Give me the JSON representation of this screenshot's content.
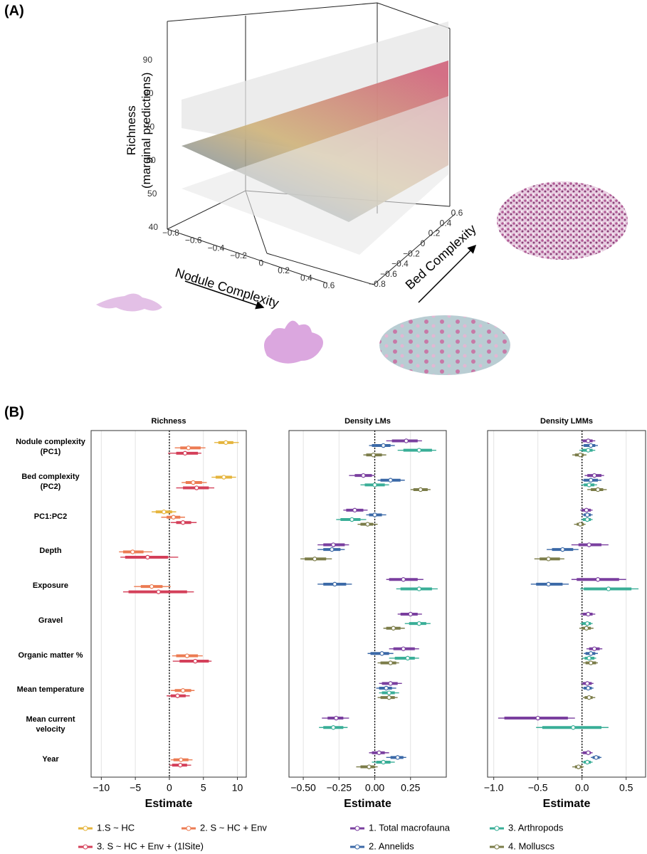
{
  "panel_a": "(A)",
  "panel_b": "(B)",
  "chart_data": [
    {
      "type": "surface",
      "zlabel": "Richness\n(marginal predictions)",
      "xlabel": "Nodule Complexity",
      "ylabel": "Bed Complexity",
      "zlim": [
        40,
        90
      ],
      "zticks": [
        40,
        50,
        60,
        70,
        80,
        90
      ],
      "xlim": [
        -0.8,
        0.6
      ],
      "xticks": [
        {
          "value": -0.8,
          "label": "−0.8"
        },
        {
          "value": -0.6,
          "label": "−0.6"
        },
        {
          "value": -0.4,
          "label": "−0.4"
        },
        {
          "value": -0.2,
          "label": "−0.2"
        },
        0,
        0.2,
        0.4,
        0.6
      ],
      "ylim": [
        -0.8,
        0.6
      ],
      "yticks": [
        {
          "value": -0.8,
          "label": "−0.8"
        },
        {
          "value": -0.6,
          "label": "−0.6"
        },
        {
          "value": -0.4,
          "label": "−0.4"
        },
        {
          "value": -0.2,
          "label": "−0.2"
        },
        0,
        0.2,
        0.4,
        0.6
      ]
    },
    {
      "type": "forest",
      "title": "Richness",
      "xlabel": "Estimate",
      "categories": [
        "Nodule complexity\n(PC1)",
        "Bed complexity\n(PC2)",
        "PC1:PC2",
        "Depth",
        "Exposure",
        "Gravel",
        "Organic matter %",
        "Mean temperature",
        "Mean current\nvelocity",
        "Year"
      ],
      "xlim": [
        -11.5,
        11.3
      ],
      "xticks": [
        {
          "value": -10,
          "label": "−10"
        },
        {
          "value": -5,
          "label": "−5"
        },
        0,
        5,
        10
      ],
      "grid": true,
      "series": [
        {
          "name": "1.S ~ HC",
          "color": "#e5b43c",
          "values": [
            8.3,
            8.0,
            -0.8,
            null,
            null,
            null,
            null,
            null,
            null,
            null
          ],
          "inner_low": [
            7.2,
            6.8,
            -2.0,
            null,
            null,
            null,
            null,
            null,
            null,
            null
          ],
          "inner_high": [
            9.4,
            9.2,
            0.4,
            null,
            null,
            null,
            null,
            null,
            null,
            null
          ],
          "outer_low": [
            6.6,
            6.2,
            -2.6,
            null,
            null,
            null,
            null,
            null,
            null,
            null
          ],
          "outer_high": [
            10.2,
            9.8,
            1.0,
            null,
            null,
            null,
            null,
            null,
            null,
            null
          ]
        },
        {
          "name": "2. S ~ HC + Env",
          "color": "#ec7b52",
          "values": [
            2.8,
            3.5,
            0.6,
            -5.4,
            -2.6,
            null,
            2.6,
            2.0,
            null,
            1.7
          ],
          "inner_low": [
            1.6,
            2.4,
            -0.4,
            -6.8,
            -4.2,
            null,
            1.0,
            0.8,
            null,
            0.6
          ],
          "inner_high": [
            4.6,
            4.8,
            1.6,
            -3.8,
            -1.0,
            null,
            4.2,
            3.2,
            null,
            2.8
          ],
          "outer_low": [
            0.8,
            1.8,
            -1.2,
            -7.4,
            -5.2,
            null,
            0.4,
            0.2,
            null,
            0.2
          ],
          "outer_high": [
            5.3,
            5.5,
            2.3,
            -2.5,
            0.2,
            null,
            4.9,
            3.7,
            null,
            3.4
          ]
        },
        {
          "name": "3. S ~ HC + Env + (1lSite)",
          "color": "#d4405a",
          "values": [
            2.3,
            4.0,
            2.0,
            -3.2,
            -1.6,
            null,
            3.8,
            1.2,
            null,
            1.6
          ],
          "inner_low": [
            1.0,
            2.0,
            1.0,
            -6.5,
            -6.0,
            null,
            1.5,
            0.2,
            null,
            0.4
          ],
          "inner_high": [
            4.2,
            5.8,
            3.2,
            -0.2,
            2.6,
            null,
            5.8,
            2.4,
            null,
            2.6
          ],
          "outer_low": [
            -0.2,
            1.0,
            0.2,
            -7.2,
            -6.8,
            null,
            0.5,
            -0.4,
            null,
            0.0
          ],
          "outer_high": [
            4.7,
            6.6,
            4.0,
            1.3,
            3.6,
            null,
            6.2,
            3.0,
            null,
            3.2
          ]
        }
      ]
    },
    {
      "type": "forest",
      "title": "Density LMs",
      "xlabel": "Estimate",
      "xlim": [
        -0.6,
        0.5
      ],
      "xticks": [
        {
          "value": -0.5,
          "label": "−0.50"
        },
        {
          "value": -0.25,
          "label": "−0.25"
        },
        {
          "value": 0,
          "label": "0.00"
        },
        0.25
      ],
      "grid": true,
      "series": [
        {
          "name": "1. Total macrofauna",
          "color": "#7a3f9f",
          "values": [
            0.22,
            -0.08,
            -0.14,
            -0.29,
            0.2,
            0.25,
            0.2,
            0.11,
            -0.27,
            0.03
          ],
          "inner_low": [
            0.12,
            -0.14,
            -0.2,
            -0.36,
            0.1,
            0.18,
            0.13,
            0.05,
            -0.33,
            -0.02
          ],
          "inner_high": [
            0.3,
            -0.02,
            -0.08,
            -0.21,
            0.3,
            0.3,
            0.28,
            0.16,
            -0.22,
            0.07
          ],
          "outer_low": [
            0.08,
            -0.18,
            -0.22,
            -0.4,
            0.08,
            0.16,
            0.1,
            0.03,
            -0.37,
            -0.04
          ],
          "outer_high": [
            0.33,
            0.0,
            -0.05,
            -0.18,
            0.34,
            0.33,
            0.31,
            0.19,
            -0.18,
            0.1
          ]
        },
        {
          "name": "2. Annelids",
          "color": "#3b69a7",
          "values": [
            0.06,
            0.11,
            0.0,
            -0.3,
            -0.28,
            null,
            0.05,
            0.08,
            null,
            0.16
          ],
          "inner_low": [
            -0.02,
            0.04,
            -0.04,
            -0.36,
            -0.36,
            null,
            -0.03,
            0.03,
            null,
            0.11
          ],
          "inner_high": [
            0.11,
            0.18,
            0.05,
            -0.24,
            -0.2,
            null,
            0.1,
            0.12,
            null,
            0.2
          ],
          "outer_low": [
            -0.04,
            0.02,
            -0.06,
            -0.4,
            -0.4,
            null,
            -0.05,
            0.01,
            null,
            0.08
          ],
          "outer_high": [
            0.14,
            0.21,
            0.08,
            -0.21,
            -0.16,
            null,
            0.13,
            0.15,
            null,
            0.22
          ]
        },
        {
          "name": "3. Arthropods",
          "color": "#39ae97",
          "values": [
            0.31,
            0.0,
            -0.16,
            null,
            0.31,
            0.31,
            0.23,
            0.1,
            -0.29,
            0.06
          ],
          "inner_low": [
            0.2,
            -0.07,
            -0.24,
            null,
            0.18,
            0.24,
            0.14,
            0.05,
            -0.36,
            0.01
          ],
          "inner_high": [
            0.4,
            0.07,
            -0.1,
            null,
            0.4,
            0.36,
            0.28,
            0.14,
            -0.22,
            0.11
          ],
          "outer_low": [
            0.16,
            -0.1,
            -0.27,
            null,
            0.15,
            0.21,
            0.1,
            0.03,
            -0.39,
            -0.02
          ],
          "outer_high": [
            0.43,
            0.1,
            -0.06,
            null,
            0.44,
            0.39,
            0.31,
            0.17,
            -0.19,
            0.14
          ]
        },
        {
          "name": "4. Molluscs",
          "color": "#7b7c49",
          "values": [
            -0.01,
            0.32,
            -0.05,
            -0.42,
            null,
            0.13,
            0.11,
            0.1,
            null,
            -0.04
          ],
          "inner_low": [
            -0.06,
            0.27,
            -0.1,
            -0.49,
            null,
            0.08,
            0.04,
            0.04,
            null,
            -0.1
          ],
          "inner_high": [
            0.05,
            0.37,
            -0.01,
            -0.34,
            null,
            0.18,
            0.15,
            0.14,
            null,
            0.0
          ],
          "outer_low": [
            -0.08,
            0.25,
            -0.12,
            -0.52,
            null,
            0.06,
            0.02,
            0.02,
            null,
            -0.13
          ],
          "outer_high": [
            0.08,
            0.39,
            0.02,
            -0.3,
            null,
            0.21,
            0.17,
            0.16,
            null,
            0.02
          ]
        }
      ]
    },
    {
      "type": "forest",
      "title": "Density LMMs",
      "xlabel": "Estimate",
      "xlim": [
        -1.07,
        0.72
      ],
      "xticks": [
        {
          "value": -1,
          "label": "−1.0"
        },
        {
          "value": -0.5,
          "label": "−0.5"
        },
        {
          "value": 0,
          "label": "0.0"
        },
        0.5
      ],
      "grid": true,
      "series": [
        {
          "color": "#7a3f9f",
          "values": [
            0.07,
            0.14,
            0.05,
            0.08,
            0.18,
            0.07,
            0.14,
            0.06,
            -0.5,
            0.07
          ],
          "inner_low": [
            0.01,
            0.06,
            0.0,
            -0.04,
            -0.06,
            0.01,
            0.08,
            0.01,
            -0.88,
            0.01
          ],
          "inner_high": [
            0.12,
            0.22,
            0.1,
            0.22,
            0.42,
            0.12,
            0.2,
            0.11,
            -0.16,
            0.1
          ],
          "outer_low": [
            -0.01,
            0.03,
            -0.02,
            -0.12,
            -0.12,
            -0.02,
            0.05,
            -0.01,
            -0.95,
            -0.01
          ],
          "outer_high": [
            0.15,
            0.25,
            0.12,
            0.3,
            0.5,
            0.15,
            0.23,
            0.13,
            -0.08,
            0.12
          ]
        },
        {
          "color": "#3b69a7",
          "values": [
            0.1,
            0.1,
            0.06,
            -0.22,
            -0.38,
            null,
            0.1,
            0.07,
            null,
            0.16
          ],
          "inner_low": [
            0.02,
            0.02,
            0.02,
            -0.34,
            -0.52,
            null,
            0.04,
            0.02,
            null,
            0.12
          ],
          "inner_high": [
            0.15,
            0.18,
            0.1,
            -0.1,
            -0.22,
            null,
            0.15,
            0.11,
            null,
            0.2
          ],
          "outer_low": [
            0.0,
            0.0,
            0.0,
            -0.4,
            -0.58,
            null,
            0.02,
            0.0,
            null,
            0.1
          ],
          "outer_high": [
            0.18,
            0.22,
            0.12,
            -0.04,
            -0.15,
            null,
            0.18,
            0.13,
            null,
            0.22
          ]
        },
        {
          "color": "#39ae97",
          "values": [
            0.07,
            0.08,
            0.06,
            null,
            0.3,
            0.06,
            0.08,
            null,
            -0.1,
            0.06
          ],
          "inner_low": [
            0.0,
            0.02,
            0.01,
            null,
            0.02,
            0.0,
            0.03,
            null,
            -0.45,
            0.02
          ],
          "inner_high": [
            0.12,
            0.14,
            0.1,
            null,
            0.56,
            0.1,
            0.14,
            null,
            0.22,
            0.1
          ],
          "outer_low": [
            -0.03,
            -0.01,
            -0.01,
            null,
            -0.02,
            -0.02,
            0.0,
            null,
            -0.52,
            0.0
          ],
          "outer_high": [
            0.15,
            0.17,
            0.12,
            null,
            0.64,
            0.12,
            0.16,
            null,
            0.3,
            0.12
          ]
        },
        {
          "color": "#7b7c49",
          "values": [
            -0.02,
            0.18,
            -0.02,
            -0.38,
            null,
            0.05,
            0.1,
            0.08,
            null,
            -0.04
          ],
          "inner_low": [
            -0.08,
            0.1,
            -0.06,
            -0.48,
            null,
            0.0,
            0.04,
            0.03,
            null,
            -0.08
          ],
          "inner_high": [
            0.02,
            0.24,
            0.02,
            -0.25,
            null,
            0.1,
            0.16,
            0.12,
            null,
            0.0
          ],
          "outer_low": [
            -0.11,
            0.06,
            -0.09,
            -0.54,
            null,
            -0.03,
            0.01,
            0.01,
            null,
            -0.11
          ],
          "outer_high": [
            0.05,
            0.28,
            0.04,
            -0.2,
            null,
            0.13,
            0.18,
            0.15,
            null,
            0.02
          ]
        }
      ]
    }
  ]
}
